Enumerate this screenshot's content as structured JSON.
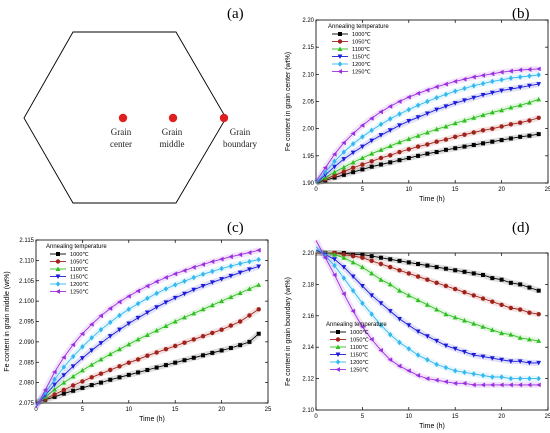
{
  "panel_labels": [
    "(a)",
    "(b)",
    "(c)",
    "(d)"
  ],
  "diagram": {
    "points": [
      {
        "label_lines": [
          "Grain",
          "center"
        ]
      },
      {
        "label_lines": [
          "Grain",
          "middle"
        ]
      },
      {
        "label_lines": [
          "Grain",
          "boundary"
        ]
      }
    ]
  },
  "legend": {
    "title": "Annealing temperature",
    "entries": [
      "1000℃",
      "1050℃",
      "1100℃",
      "1150℃",
      "1200℃",
      "1250℃"
    ]
  },
  "colors": [
    "#000000",
    "#a0201a",
    "#2fbf20",
    "#1a1adb",
    "#33b8f0",
    "#9b2fe0"
  ],
  "markers": [
    "square",
    "circle",
    "triangle-up",
    "triangle-down",
    "diamond",
    "triangle-left"
  ],
  "chart_data": [
    {
      "type": "line",
      "panel": "(b)",
      "xlabel": "Time (h)",
      "ylabel": "Fe content in grain center (wt%)",
      "xlim": [
        0,
        25
      ],
      "ylim": [
        1.9,
        2.2
      ],
      "xticks": [
        "0",
        "5",
        "10",
        "15",
        "20",
        "25"
      ],
      "yticks": [
        "1.90",
        "1.95",
        "2.00",
        "2.05",
        "2.10",
        "2.15",
        "2.20"
      ],
      "legend_position": "top-left",
      "series": [
        {
          "name": "1000℃",
          "x": [
            1,
            2,
            3,
            4,
            5,
            6,
            7,
            8,
            9,
            10,
            11,
            12,
            13,
            14,
            15,
            16,
            17,
            18,
            19,
            20,
            21,
            22,
            23,
            24
          ],
          "y": [
            1.905,
            1.91,
            1.915,
            1.92,
            1.925,
            1.93,
            1.934,
            1.938,
            1.942,
            1.946,
            1.95,
            1.954,
            1.957,
            1.961,
            1.964,
            1.967,
            1.97,
            1.973,
            1.976,
            1.979,
            1.982,
            1.985,
            1.987,
            1.99
          ]
        },
        {
          "name": "1050℃",
          "x": [
            1,
            2,
            3,
            4,
            5,
            6,
            7,
            8,
            9,
            10,
            11,
            12,
            13,
            14,
            15,
            16,
            17,
            18,
            19,
            20,
            21,
            22,
            23,
            24
          ],
          "y": [
            1.907,
            1.914,
            1.921,
            1.928,
            1.934,
            1.94,
            1.946,
            1.951,
            1.957,
            1.962,
            1.967,
            1.971,
            1.976,
            1.98,
            1.985,
            1.989,
            1.993,
            1.997,
            2.0,
            2.004,
            2.008,
            2.011,
            2.015,
            2.02
          ]
        },
        {
          "name": "1100℃",
          "x": [
            1,
            2,
            3,
            4,
            5,
            6,
            7,
            8,
            9,
            10,
            11,
            12,
            13,
            14,
            15,
            16,
            17,
            18,
            19,
            20,
            21,
            22,
            23,
            24
          ],
          "y": [
            1.91,
            1.92,
            1.929,
            1.938,
            1.946,
            1.954,
            1.961,
            1.968,
            1.975,
            1.981,
            1.987,
            1.993,
            1.999,
            2.004,
            2.01,
            2.015,
            2.02,
            2.025,
            2.03,
            2.034,
            2.039,
            2.043,
            2.048,
            2.054
          ]
        },
        {
          "name": "1150℃",
          "x": [
            1,
            2,
            3,
            4,
            5,
            6,
            7,
            8,
            9,
            10,
            11,
            12,
            13,
            14,
            15,
            16,
            17,
            18,
            19,
            20,
            21,
            22,
            23,
            24
          ],
          "y": [
            1.915,
            1.93,
            1.944,
            1.956,
            1.967,
            1.978,
            1.988,
            1.997,
            2.006,
            2.014,
            2.021,
            2.028,
            2.035,
            2.041,
            2.047,
            2.052,
            2.057,
            2.062,
            2.066,
            2.07,
            2.073,
            2.076,
            2.079,
            2.082
          ]
        },
        {
          "name": "1200℃",
          "x": [
            1,
            2,
            3,
            4,
            5,
            6,
            7,
            8,
            9,
            10,
            11,
            12,
            13,
            14,
            15,
            16,
            17,
            18,
            19,
            20,
            21,
            22,
            23,
            24
          ],
          "y": [
            1.92,
            1.94,
            1.957,
            1.972,
            1.985,
            1.997,
            2.008,
            2.018,
            2.027,
            2.035,
            2.043,
            2.05,
            2.057,
            2.063,
            2.069,
            2.074,
            2.079,
            2.083,
            2.087,
            2.09,
            2.093,
            2.095,
            2.097,
            2.099
          ]
        },
        {
          "name": "1250℃",
          "x": [
            1,
            2,
            3,
            4,
            5,
            6,
            7,
            8,
            9,
            10,
            11,
            12,
            13,
            14,
            15,
            16,
            17,
            18,
            19,
            20,
            21,
            22,
            23,
            24
          ],
          "y": [
            1.928,
            1.953,
            1.974,
            1.991,
            2.006,
            2.019,
            2.031,
            2.041,
            2.05,
            2.058,
            2.065,
            2.071,
            2.077,
            2.082,
            2.087,
            2.091,
            2.095,
            2.098,
            2.101,
            2.104,
            2.106,
            2.108,
            2.109,
            2.11
          ]
        }
      ]
    },
    {
      "type": "line",
      "panel": "(c)",
      "xlabel": "Time (h)",
      "ylabel": "Fe content in grain middle (wt%)",
      "xlim": [
        0,
        25
      ],
      "ylim": [
        2.075,
        2.115
      ],
      "xticks": [
        "0",
        "5",
        "10",
        "15",
        "20",
        "25"
      ],
      "yticks": [
        "2.075",
        "2.080",
        "2.085",
        "2.090",
        "2.095",
        "2.100",
        "2.105",
        "2.110",
        "2.115"
      ],
      "legend_position": "top-left",
      "series": [
        {
          "name": "1000℃",
          "x": [
            1,
            2,
            3,
            4,
            5,
            6,
            7,
            8,
            9,
            10,
            11,
            12,
            13,
            14,
            15,
            16,
            17,
            18,
            19,
            20,
            21,
            22,
            23,
            24
          ],
          "y": [
            2.0758,
            2.0765,
            2.0773,
            2.078,
            2.0787,
            2.0794,
            2.08,
            2.0807,
            2.0813,
            2.0819,
            2.0825,
            2.0831,
            2.0837,
            2.0843,
            2.0849,
            2.0855,
            2.0861,
            2.0867,
            2.0873,
            2.0879,
            2.0885,
            2.0892,
            2.09,
            2.092
          ]
        },
        {
          "name": "1050℃",
          "x": [
            1,
            2,
            3,
            4,
            5,
            6,
            7,
            8,
            9,
            10,
            11,
            12,
            13,
            14,
            15,
            16,
            17,
            18,
            19,
            20,
            21,
            22,
            23,
            24
          ],
          "y": [
            2.076,
            2.0771,
            2.0782,
            2.0793,
            2.0803,
            2.0813,
            2.0822,
            2.0831,
            2.084,
            2.0849,
            2.0857,
            2.0866,
            2.0874,
            2.0882,
            2.089,
            2.0898,
            2.0906,
            2.0914,
            2.0922,
            2.093,
            2.094,
            2.095,
            2.0965,
            2.098
          ]
        },
        {
          "name": "1100℃",
          "x": [
            1,
            2,
            3,
            4,
            5,
            6,
            7,
            8,
            9,
            10,
            11,
            12,
            13,
            14,
            15,
            16,
            17,
            18,
            19,
            20,
            21,
            22,
            23,
            24
          ],
          "y": [
            2.0765,
            2.0783,
            2.08,
            2.0815,
            2.083,
            2.0844,
            2.0857,
            2.087,
            2.0882,
            2.0894,
            2.0906,
            2.0917,
            2.0928,
            2.0939,
            2.095,
            2.096,
            2.097,
            2.098,
            2.099,
            2.1,
            2.101,
            2.102,
            2.103,
            2.104
          ]
        },
        {
          "name": "1150℃",
          "x": [
            1,
            2,
            3,
            4,
            5,
            6,
            7,
            8,
            9,
            10,
            11,
            12,
            13,
            14,
            15,
            16,
            17,
            18,
            19,
            20,
            21,
            22,
            23,
            24
          ],
          "y": [
            2.077,
            2.0795,
            2.0818,
            2.084,
            2.086,
            2.0879,
            2.0897,
            2.0914,
            2.093,
            2.0945,
            2.0959,
            2.0972,
            2.0985,
            2.0997,
            2.1008,
            2.1018,
            2.1028,
            2.1037,
            2.1046,
            2.1054,
            2.1062,
            2.107,
            2.1078,
            2.1085
          ]
        },
        {
          "name": "1200℃",
          "x": [
            1,
            2,
            3,
            4,
            5,
            6,
            7,
            8,
            9,
            10,
            11,
            12,
            13,
            14,
            15,
            16,
            17,
            18,
            19,
            20,
            21,
            22,
            23,
            24
          ],
          "y": [
            2.0775,
            2.0808,
            2.0838,
            2.0864,
            2.0888,
            2.091,
            2.093,
            2.0948,
            2.0965,
            2.098,
            2.0994,
            2.1007,
            2.1019,
            2.103,
            2.104,
            2.1049,
            2.1058,
            2.1066,
            2.1073,
            2.108,
            2.1086,
            2.1092,
            2.1097,
            2.1102
          ]
        },
        {
          "name": "1250℃",
          "x": [
            1,
            2,
            3,
            4,
            5,
            6,
            7,
            8,
            9,
            10,
            11,
            12,
            13,
            14,
            15,
            16,
            17,
            18,
            19,
            20,
            21,
            22,
            23,
            24
          ],
          "y": [
            2.0782,
            2.0826,
            2.0862,
            2.0893,
            2.092,
            2.0943,
            2.0964,
            2.0982,
            2.0998,
            2.1012,
            2.1025,
            2.1037,
            2.1048,
            2.1058,
            2.1067,
            2.1075,
            2.1083,
            2.109,
            2.1097,
            2.1103,
            2.1109,
            2.1114,
            2.1119,
            2.1125
          ]
        }
      ]
    },
    {
      "type": "line",
      "panel": "(d)",
      "xlabel": "Time (h)",
      "ylabel": "Fe content in grain boundary (wt%)",
      "xlim": [
        0,
        25
      ],
      "ylim": [
        2.1,
        2.2
      ],
      "xticks": [
        "0",
        "5",
        "10",
        "15",
        "20",
        "25"
      ],
      "yticks": [
        "2.10",
        "2.12",
        "2.14",
        "2.16",
        "2.18",
        "2.20"
      ],
      "legend_position": "bottom-left",
      "series": [
        {
          "name": "1000℃",
          "x": [
            1,
            2,
            3,
            4,
            5,
            6,
            7,
            8,
            9,
            10,
            11,
            12,
            13,
            14,
            15,
            16,
            17,
            18,
            19,
            20,
            21,
            22,
            23,
            24
          ],
          "y": [
            2.2,
            2.2,
            2.2,
            2.199,
            2.199,
            2.198,
            2.197,
            2.196,
            2.195,
            2.194,
            2.193,
            2.192,
            2.191,
            2.19,
            2.189,
            2.188,
            2.187,
            2.186,
            2.184,
            2.183,
            2.181,
            2.18,
            2.178,
            2.176
          ]
        },
        {
          "name": "1050℃",
          "x": [
            1,
            2,
            3,
            4,
            5,
            6,
            7,
            8,
            9,
            10,
            11,
            12,
            13,
            14,
            15,
            16,
            17,
            18,
            19,
            20,
            21,
            22,
            23,
            24
          ],
          "y": [
            2.2,
            2.2,
            2.199,
            2.198,
            2.197,
            2.195,
            2.193,
            2.191,
            2.189,
            2.187,
            2.185,
            2.183,
            2.181,
            2.179,
            2.177,
            2.175,
            2.173,
            2.171,
            2.169,
            2.167,
            2.165,
            2.164,
            2.162,
            2.161
          ]
        },
        {
          "name": "1100℃",
          "x": [
            1,
            2,
            3,
            4,
            5,
            6,
            7,
            8,
            9,
            10,
            11,
            12,
            13,
            14,
            15,
            16,
            17,
            18,
            19,
            20,
            21,
            22,
            23,
            24
          ],
          "y": [
            2.2,
            2.199,
            2.197,
            2.194,
            2.191,
            2.187,
            2.183,
            2.18,
            2.176,
            2.173,
            2.17,
            2.167,
            2.164,
            2.161,
            2.159,
            2.157,
            2.155,
            2.153,
            2.151,
            2.149,
            2.148,
            2.146,
            2.145,
            2.144
          ]
        },
        {
          "name": "1150℃",
          "x": [
            1,
            2,
            3,
            4,
            5,
            6,
            7,
            8,
            9,
            10,
            11,
            12,
            13,
            14,
            15,
            16,
            17,
            18,
            19,
            20,
            21,
            22,
            23,
            24
          ],
          "y": [
            2.199,
            2.196,
            2.191,
            2.185,
            2.179,
            2.173,
            2.168,
            2.163,
            2.158,
            2.154,
            2.15,
            2.147,
            2.144,
            2.141,
            2.139,
            2.137,
            2.135,
            2.134,
            2.133,
            2.132,
            2.131,
            2.131,
            2.13,
            2.13
          ]
        },
        {
          "name": "1200℃",
          "x": [
            1,
            2,
            3,
            4,
            5,
            6,
            7,
            8,
            9,
            10,
            11,
            12,
            13,
            14,
            15,
            16,
            17,
            18,
            19,
            20,
            21,
            22,
            23,
            24
          ],
          "y": [
            2.198,
            2.192,
            2.184,
            2.176,
            2.168,
            2.161,
            2.154,
            2.148,
            2.143,
            2.139,
            2.135,
            2.132,
            2.129,
            2.127,
            2.125,
            2.124,
            2.123,
            2.122,
            2.121,
            2.121,
            2.12,
            2.12,
            2.12,
            2.12
          ]
        },
        {
          "name": "1250℃",
          "x": [
            1,
            2,
            3,
            4,
            5,
            6,
            7,
            8,
            9,
            10,
            11,
            12,
            13,
            14,
            15,
            16,
            17,
            18,
            19,
            20,
            21,
            22,
            23,
            24
          ],
          "y": [
            2.197,
            2.186,
            2.174,
            2.163,
            2.153,
            2.145,
            2.138,
            2.132,
            2.128,
            2.125,
            2.122,
            2.12,
            2.119,
            2.118,
            2.117,
            2.117,
            2.116,
            2.116,
            2.116,
            2.116,
            2.116,
            2.116,
            2.116,
            2.116
          ]
        }
      ]
    }
  ]
}
